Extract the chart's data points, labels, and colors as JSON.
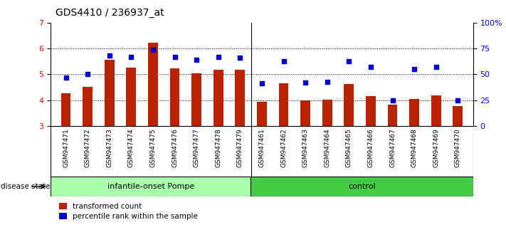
{
  "title": "GDS4410 / 236937_at",
  "categories": [
    "GSM947471",
    "GSM947472",
    "GSM947473",
    "GSM947474",
    "GSM947475",
    "GSM947476",
    "GSM947477",
    "GSM947478",
    "GSM947479",
    "GSM947461",
    "GSM947462",
    "GSM947463",
    "GSM947464",
    "GSM947465",
    "GSM947466",
    "GSM947467",
    "GSM947468",
    "GSM947469",
    "GSM947470"
  ],
  "bar_values": [
    4.28,
    4.52,
    5.55,
    5.25,
    6.22,
    5.22,
    5.05,
    5.18,
    5.18,
    3.95,
    4.65,
    4.0,
    4.02,
    4.62,
    4.15,
    3.82,
    4.05,
    4.18,
    3.78
  ],
  "dot_values": [
    47,
    50,
    68,
    67,
    74,
    67,
    64,
    67,
    66,
    41,
    63,
    42,
    43,
    63,
    57,
    25,
    55,
    57,
    25
  ],
  "bar_color": "#BB2200",
  "dot_color": "#0000CC",
  "ylim_left": [
    3,
    7
  ],
  "ylim_right": [
    0,
    100
  ],
  "yticks_left": [
    3,
    4,
    5,
    6,
    7
  ],
  "yticks_right": [
    0,
    25,
    50,
    75,
    100
  ],
  "ytick_labels_right": [
    "0",
    "25",
    "50",
    "75",
    "100%"
  ],
  "group1_label": "infantile-onset Pompe",
  "group2_label": "control",
  "group1_count": 9,
  "group2_count": 10,
  "disease_state_label": "disease state",
  "legend_bar_label": "transformed count",
  "legend_dot_label": "percentile rank within the sample",
  "group1_color": "#AAFFAA",
  "group2_color": "#44CC44",
  "xlabel_area_color": "#CCCCCC",
  "bar_width": 0.45
}
